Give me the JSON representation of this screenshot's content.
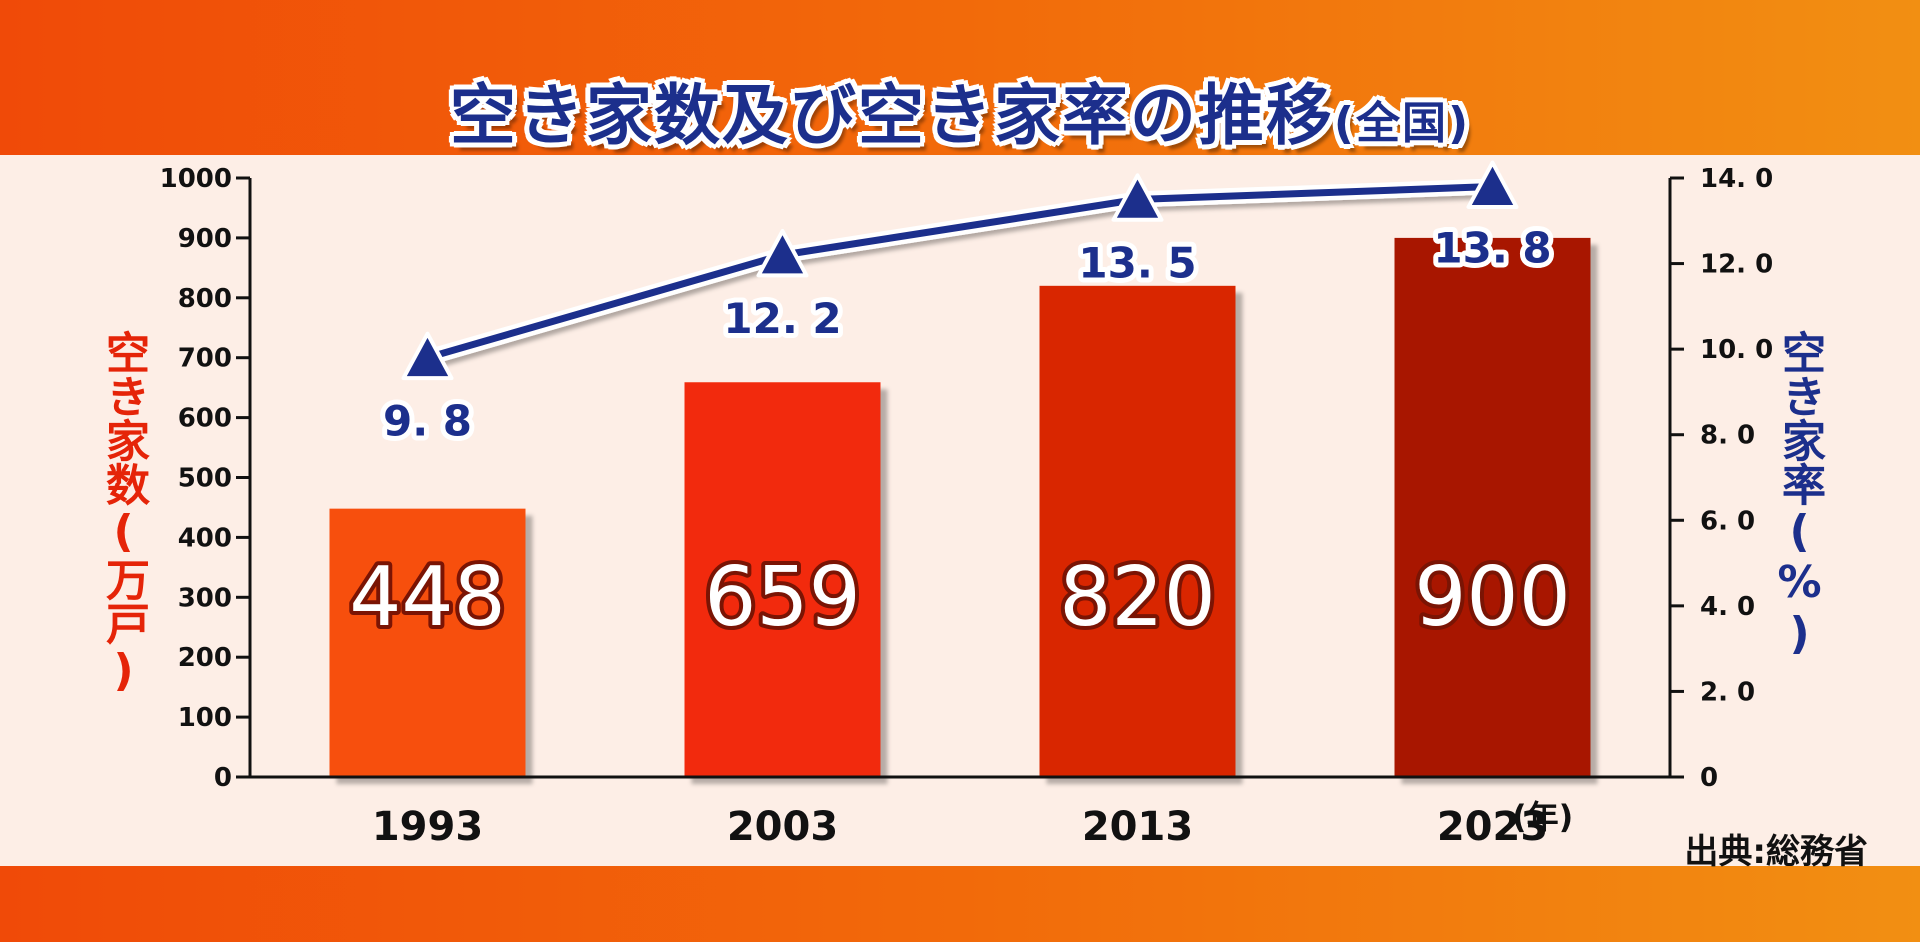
{
  "title": {
    "main": "空き家数及び空き家率の推移",
    "sub": "(全国)"
  },
  "source": "出典:総務省",
  "chart_data": {
    "type": "bar",
    "categories": [
      "1993",
      "2003",
      "2013",
      "2023"
    ],
    "x_suffix": "(年)",
    "series": [
      {
        "name": "空き家数(万戸)",
        "type": "bar",
        "axis": "left",
        "values": [
          448,
          659,
          820,
          900
        ],
        "colors": [
          "#f7500a",
          "#f22a08",
          "#d92504",
          "#a81402"
        ]
      },
      {
        "name": "空き家率(%)",
        "type": "line",
        "axis": "right",
        "values": [
          9.8,
          12.2,
          13.5,
          13.8
        ],
        "labels": [
          "9. 8",
          "12. 2",
          "13. 5",
          "13. 8"
        ],
        "color": "#1c2f8c"
      }
    ],
    "ylabel_left": "空き家数(万戸)",
    "ylabel_right": "空き家率(%)",
    "ylim_left": [
      0,
      1000
    ],
    "ylim_right": [
      0,
      14
    ],
    "yticks_left": [
      "0",
      "100",
      "200",
      "300",
      "400",
      "500",
      "600",
      "700",
      "800",
      "900",
      "1000"
    ],
    "yticks_right": [
      "0",
      "2. 0",
      "4. 0",
      "6. 0",
      "8. 0",
      "10. 0",
      "12. 0",
      "14. 0"
    ],
    "grid": false,
    "legend": "none"
  }
}
